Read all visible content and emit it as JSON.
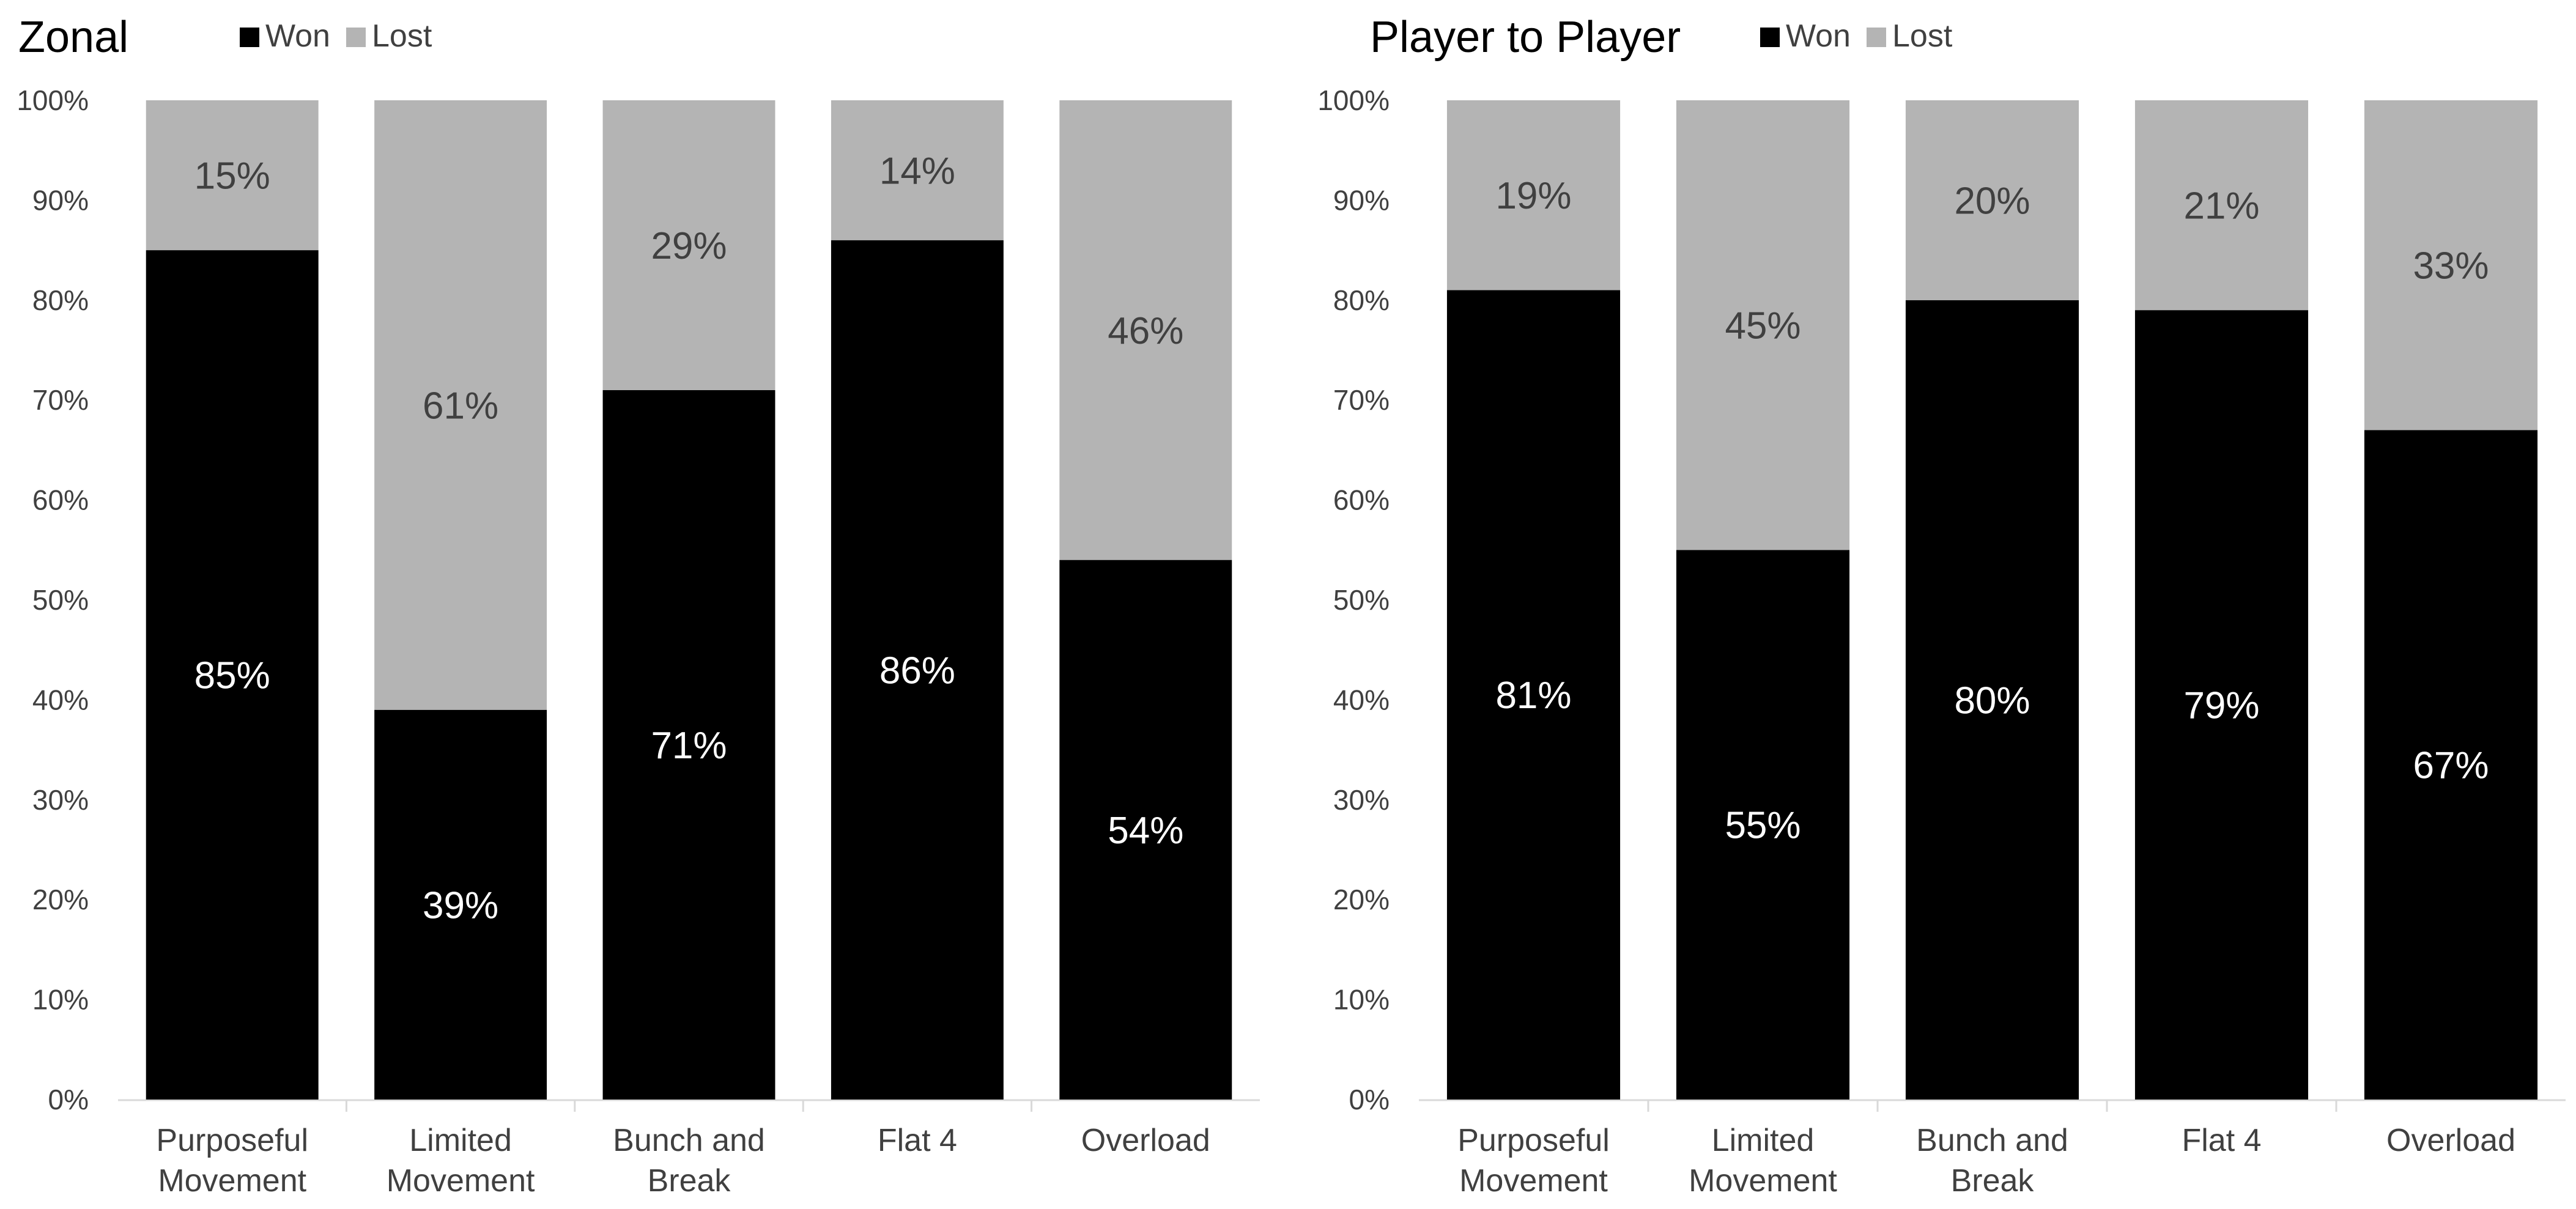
{
  "chart_data": [
    {
      "type": "bar",
      "stacked": true,
      "title": "Zonal",
      "categories": [
        [
          "Purposeful",
          "Movement"
        ],
        [
          "Limited",
          "Movement"
        ],
        [
          "Bunch and",
          "Break"
        ],
        [
          "Flat 4"
        ],
        [
          "Overload"
        ]
      ],
      "series": [
        {
          "name": "Won",
          "color": "#000000",
          "label_color": "#ffffff",
          "values": [
            85,
            39,
            71,
            86,
            54
          ]
        },
        {
          "name": "Lost",
          "color": "#b4b4b4",
          "label_color": "#404040",
          "values": [
            15,
            61,
            29,
            14,
            46
          ]
        }
      ],
      "ylim": [
        0,
        100
      ],
      "yticks": [
        "0%",
        "10%",
        "20%",
        "30%",
        "40%",
        "50%",
        "60%",
        "70%",
        "80%",
        "90%",
        "100%"
      ],
      "value_suffix": "%",
      "legend": "top",
      "grid": false
    },
    {
      "type": "bar",
      "stacked": true,
      "title": "Player to Player",
      "categories": [
        [
          "Purposeful",
          "Movement"
        ],
        [
          "Limited",
          "Movement"
        ],
        [
          "Bunch and",
          "Break"
        ],
        [
          "Flat 4"
        ],
        [
          "Overload"
        ]
      ],
      "series": [
        {
          "name": "Won",
          "color": "#000000",
          "label_color": "#ffffff",
          "values": [
            81,
            55,
            80,
            79,
            67
          ]
        },
        {
          "name": "Lost",
          "color": "#b4b4b4",
          "label_color": "#404040",
          "values": [
            19,
            45,
            20,
            21,
            33
          ]
        }
      ],
      "ylim": [
        0,
        100
      ],
      "yticks": [
        "0%",
        "10%",
        "20%",
        "30%",
        "40%",
        "50%",
        "60%",
        "70%",
        "80%",
        "90%",
        "100%"
      ],
      "value_suffix": "%",
      "legend": "top",
      "grid": false
    }
  ]
}
